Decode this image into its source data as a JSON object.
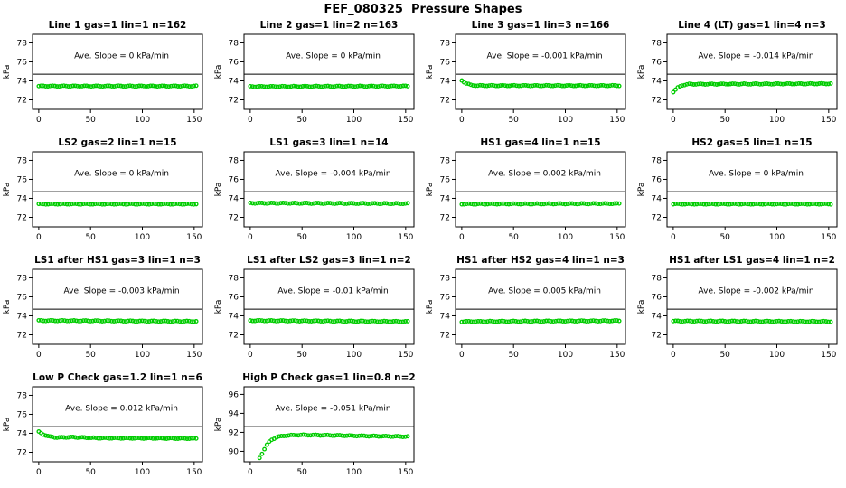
{
  "page_title": "FEF_080325  Pressure Shapes",
  "colors": {
    "points": "#00CC00",
    "ref_line": "#000000",
    "axis": "#000000",
    "background": "#FFFFFF"
  },
  "chart_data": [
    {
      "type": "scatter",
      "title": "Line 1 gas=1 lin=1 n=162",
      "annotation": "Ave. Slope = 0 kPa/min",
      "slope_kpa_min": 0,
      "ylabel": "kPa",
      "xticks": [
        0,
        50,
        100,
        150
      ],
      "yticks": [
        72,
        74,
        76,
        78
      ],
      "xlim": [
        -6,
        158
      ],
      "ylim": [
        71,
        78.9
      ],
      "ref_line": 74.7,
      "annotation_xy": [
        80,
        76.4
      ],
      "n_points": 70,
      "profile": [
        [
          0,
          73.45
        ],
        [
          152,
          73.45
        ]
      ]
    },
    {
      "type": "scatter",
      "title": "Line 2 gas=1 lin=2 n=163",
      "annotation": "Ave. Slope = 0 kPa/min",
      "slope_kpa_min": 0,
      "ylabel": "kPa",
      "xticks": [
        0,
        50,
        100,
        150
      ],
      "yticks": [
        72,
        74,
        76,
        78
      ],
      "xlim": [
        -6,
        158
      ],
      "ylim": [
        71,
        78.9
      ],
      "ref_line": 74.7,
      "annotation_xy": [
        80,
        76.4
      ],
      "n_points": 70,
      "profile": [
        [
          0,
          73.4
        ],
        [
          152,
          73.45
        ]
      ]
    },
    {
      "type": "scatter",
      "title": "Line 3 gas=1 lin=3 n=166",
      "annotation": "Ave. Slope = -0.001 kPa/min",
      "slope_kpa_min": -0.001,
      "ylabel": "kPa",
      "xticks": [
        0,
        50,
        100,
        150
      ],
      "yticks": [
        72,
        74,
        76,
        78
      ],
      "xlim": [
        -6,
        158
      ],
      "ylim": [
        71,
        78.9
      ],
      "ref_line": 74.7,
      "annotation_xy": [
        80,
        76.4
      ],
      "n_points": 70,
      "profile": [
        [
          0,
          74.05
        ],
        [
          4,
          73.75
        ],
        [
          9,
          73.55
        ],
        [
          15,
          73.5
        ],
        [
          152,
          73.5
        ]
      ]
    },
    {
      "type": "scatter",
      "title": "Line 4 (LT) gas=1 lin=4 n=3",
      "annotation": "Ave. Slope = -0.014 kPa/min",
      "slope_kpa_min": -0.014,
      "ylabel": "kPa",
      "xticks": [
        0,
        50,
        100,
        150
      ],
      "yticks": [
        72,
        74,
        76,
        78
      ],
      "xlim": [
        -6,
        158
      ],
      "ylim": [
        71,
        78.9
      ],
      "ref_line": 74.7,
      "annotation_xy": [
        80,
        76.4
      ],
      "n_points": 70,
      "profile": [
        [
          0,
          72.85
        ],
        [
          4,
          73.25
        ],
        [
          9,
          73.55
        ],
        [
          15,
          73.65
        ],
        [
          152,
          73.7
        ]
      ]
    },
    {
      "type": "scatter",
      "title": "LS2 gas=2 lin=1 n=15",
      "annotation": "Ave. Slope = 0 kPa/min",
      "slope_kpa_min": 0,
      "ylabel": "kPa",
      "xticks": [
        0,
        50,
        100,
        150
      ],
      "yticks": [
        72,
        74,
        76,
        78
      ],
      "xlim": [
        -6,
        158
      ],
      "ylim": [
        71,
        78.9
      ],
      "ref_line": 74.7,
      "annotation_xy": [
        80,
        76.4
      ],
      "n_points": 68,
      "profile": [
        [
          0,
          73.4
        ],
        [
          152,
          73.4
        ]
      ]
    },
    {
      "type": "scatter",
      "title": "LS1 gas=3 lin=1 n=14",
      "annotation": "Ave. Slope = -0.004 kPa/min",
      "slope_kpa_min": -0.004,
      "ylabel": "kPa",
      "xticks": [
        0,
        50,
        100,
        150
      ],
      "yticks": [
        72,
        74,
        76,
        78
      ],
      "xlim": [
        -6,
        158
      ],
      "ylim": [
        71,
        78.9
      ],
      "ref_line": 74.7,
      "annotation_xy": [
        80,
        76.4
      ],
      "n_points": 68,
      "profile": [
        [
          0,
          73.5
        ],
        [
          152,
          73.45
        ]
      ]
    },
    {
      "type": "scatter",
      "title": "HS1 gas=4 lin=1 n=15",
      "annotation": "Ave. Slope = 0.002 kPa/min",
      "slope_kpa_min": 0.002,
      "ylabel": "kPa",
      "xticks": [
        0,
        50,
        100,
        150
      ],
      "yticks": [
        72,
        74,
        76,
        78
      ],
      "xlim": [
        -6,
        158
      ],
      "ylim": [
        71,
        78.9
      ],
      "ref_line": 74.7,
      "annotation_xy": [
        80,
        76.4
      ],
      "n_points": 68,
      "profile": [
        [
          0,
          73.4
        ],
        [
          152,
          73.45
        ]
      ]
    },
    {
      "type": "scatter",
      "title": "HS2 gas=5 lin=1 n=15",
      "annotation": "Ave. Slope = 0 kPa/min",
      "slope_kpa_min": 0,
      "ylabel": "kPa",
      "xticks": [
        0,
        50,
        100,
        150
      ],
      "yticks": [
        72,
        74,
        76,
        78
      ],
      "xlim": [
        -6,
        158
      ],
      "ylim": [
        71,
        78.9
      ],
      "ref_line": 74.7,
      "annotation_xy": [
        80,
        76.4
      ],
      "n_points": 68,
      "profile": [
        [
          0,
          73.4
        ],
        [
          152,
          73.4
        ]
      ]
    },
    {
      "type": "scatter",
      "title": "LS1 after HS1 gas=3 lin=1 n=3",
      "annotation": "Ave. Slope = -0.003 kPa/min",
      "slope_kpa_min": -0.003,
      "ylabel": "kPa",
      "xticks": [
        0,
        50,
        100,
        150
      ],
      "yticks": [
        72,
        74,
        76,
        78
      ],
      "xlim": [
        -6,
        158
      ],
      "ylim": [
        71,
        78.9
      ],
      "ref_line": 74.7,
      "annotation_xy": [
        80,
        76.4
      ],
      "n_points": 68,
      "profile": [
        [
          0,
          73.5
        ],
        [
          152,
          73.42
        ]
      ]
    },
    {
      "type": "scatter",
      "title": "LS1 after LS2 gas=3 lin=1 n=2",
      "annotation": "Ave. Slope = -0.01 kPa/min",
      "slope_kpa_min": -0.01,
      "ylabel": "kPa",
      "xticks": [
        0,
        50,
        100,
        150
      ],
      "yticks": [
        72,
        74,
        76,
        78
      ],
      "xlim": [
        -6,
        158
      ],
      "ylim": [
        71,
        78.9
      ],
      "ref_line": 74.7,
      "annotation_xy": [
        80,
        76.4
      ],
      "n_points": 68,
      "profile": [
        [
          0,
          73.5
        ],
        [
          152,
          73.4
        ]
      ]
    },
    {
      "type": "scatter",
      "title": "HS1 after HS2 gas=4 lin=1 n=3",
      "annotation": "Ave. Slope = 0.005 kPa/min",
      "slope_kpa_min": 0.005,
      "ylabel": "kPa",
      "xticks": [
        0,
        50,
        100,
        150
      ],
      "yticks": [
        72,
        74,
        76,
        78
      ],
      "xlim": [
        -6,
        158
      ],
      "ylim": [
        71,
        78.9
      ],
      "ref_line": 74.7,
      "annotation_xy": [
        80,
        76.4
      ],
      "n_points": 68,
      "profile": [
        [
          0,
          73.4
        ],
        [
          152,
          73.48
        ]
      ]
    },
    {
      "type": "scatter",
      "title": "HS1 after LS1 gas=4 lin=1 n=2",
      "annotation": "Ave. Slope = -0.002 kPa/min",
      "slope_kpa_min": -0.002,
      "ylabel": "kPa",
      "xticks": [
        0,
        50,
        100,
        150
      ],
      "yticks": [
        72,
        74,
        76,
        78
      ],
      "xlim": [
        -6,
        158
      ],
      "ylim": [
        71,
        78.9
      ],
      "ref_line": 74.7,
      "annotation_xy": [
        80,
        76.4
      ],
      "n_points": 68,
      "profile": [
        [
          0,
          73.45
        ],
        [
          152,
          73.4
        ]
      ]
    },
    {
      "type": "scatter",
      "title": "Low P Check gas=1.2 lin=1 n=6",
      "annotation": "Ave. Slope = 0.012 kPa/min",
      "slope_kpa_min": 0.012,
      "ylabel": "kPa",
      "xticks": [
        0,
        50,
        100,
        150
      ],
      "yticks": [
        72,
        74,
        76,
        78
      ],
      "xlim": [
        -6,
        158
      ],
      "ylim": [
        71,
        78.9
      ],
      "ref_line": 74.7,
      "annotation_xy": [
        80,
        76.4
      ],
      "n_points": 70,
      "profile": [
        [
          0,
          74.15
        ],
        [
          5,
          73.85
        ],
        [
          10,
          73.65
        ],
        [
          18,
          73.55
        ],
        [
          32,
          73.6
        ],
        [
          55,
          73.5
        ],
        [
          152,
          73.45
        ]
      ]
    },
    {
      "type": "scatter",
      "title": "High P Check gas=1 lin=0.8 n=2",
      "annotation": "Ave. Slope = -0.051 kPa/min",
      "slope_kpa_min": -0.051,
      "ylabel": "kPa",
      "xticks": [
        0,
        50,
        100,
        150
      ],
      "yticks": [
        90,
        92,
        94,
        96
      ],
      "xlim": [
        -6,
        158
      ],
      "ylim": [
        88.9,
        96.8
      ],
      "ref_line": 92.6,
      "annotation_xy": [
        80,
        94.3
      ],
      "n_points": 62,
      "profile": [
        [
          9,
          89.3
        ],
        [
          11,
          89.7
        ],
        [
          14,
          90.3
        ],
        [
          17,
          90.85
        ],
        [
          21,
          91.25
        ],
        [
          26,
          91.5
        ],
        [
          33,
          91.65
        ],
        [
          45,
          91.72
        ],
        [
          70,
          91.7
        ],
        [
          110,
          91.62
        ],
        [
          152,
          91.55
        ]
      ]
    }
  ]
}
